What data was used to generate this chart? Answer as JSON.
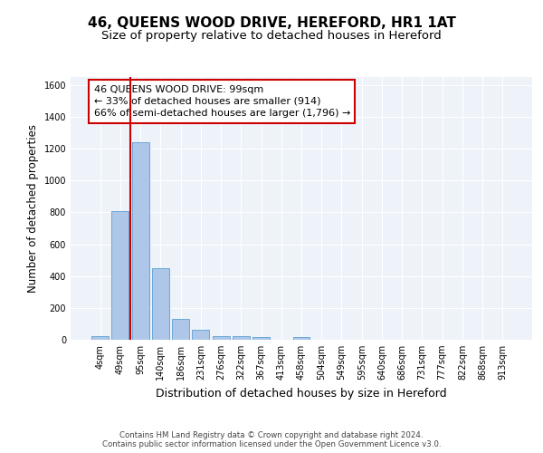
{
  "title": "46, QUEENS WOOD DRIVE, HEREFORD, HR1 1AT",
  "subtitle": "Size of property relative to detached houses in Hereford",
  "xlabel": "Distribution of detached houses by size in Hereford",
  "ylabel": "Number of detached properties",
  "bin_labels": [
    "4sqm",
    "49sqm",
    "95sqm",
    "140sqm",
    "186sqm",
    "231sqm",
    "276sqm",
    "322sqm",
    "367sqm",
    "413sqm",
    "458sqm",
    "504sqm",
    "549sqm",
    "595sqm",
    "640sqm",
    "686sqm",
    "731sqm",
    "777sqm",
    "822sqm",
    "868sqm",
    "913sqm"
  ],
  "bar_heights": [
    25,
    810,
    1240,
    450,
    130,
    65,
    25,
    20,
    15,
    0,
    15,
    0,
    0,
    0,
    0,
    0,
    0,
    0,
    0,
    0,
    0
  ],
  "bar_color": "#aec6e8",
  "bar_edge_color": "#5a9fd4",
  "property_line_bin": 2,
  "property_line_color": "#cc0000",
  "annotation_text": "46 QUEENS WOOD DRIVE: 99sqm\n← 33% of detached houses are smaller (914)\n66% of semi-detached houses are larger (1,796) →",
  "annotation_box_color": "#ffffff",
  "annotation_box_edge": "#cc0000",
  "ylim": [
    0,
    1650
  ],
  "yticks": [
    0,
    200,
    400,
    600,
    800,
    1000,
    1200,
    1400,
    1600
  ],
  "footer_text": "Contains HM Land Registry data © Crown copyright and database right 2024.\nContains public sector information licensed under the Open Government Licence v3.0.",
  "bg_color": "#eef3fa",
  "grid_color": "#ffffff",
  "title_fontsize": 11,
  "subtitle_fontsize": 9.5,
  "annotation_fontsize": 8
}
